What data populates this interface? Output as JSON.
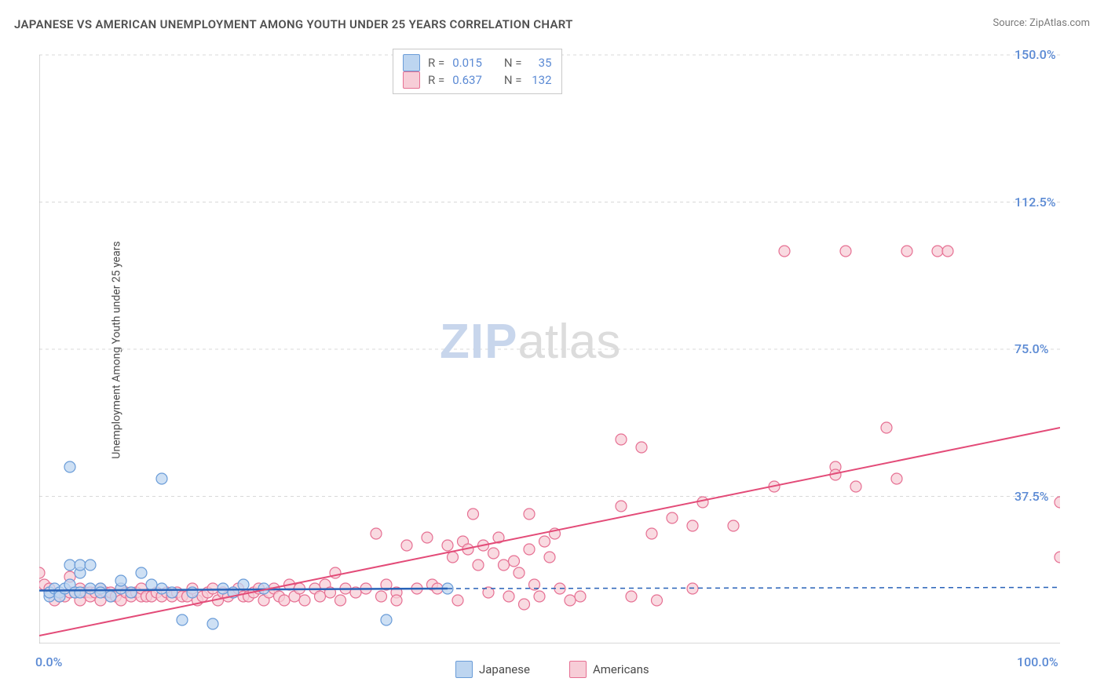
{
  "title": "JAPANESE VS AMERICAN UNEMPLOYMENT AMONG YOUTH UNDER 25 YEARS CORRELATION CHART",
  "source": "Source: ZipAtlas.com",
  "y_axis_label": "Unemployment Among Youth under 25 years",
  "watermark_zip": "ZIP",
  "watermark_atlas": "atlas",
  "chart": {
    "type": "scatter",
    "xlim": [
      0,
      100
    ],
    "ylim": [
      0,
      150
    ],
    "x_ticks_minor_step": 5,
    "x_ticks": [
      0,
      100
    ],
    "x_tick_labels": [
      "0.0%",
      "100.0%"
    ],
    "y_ticks": [
      37.5,
      75.0,
      112.5,
      150.0
    ],
    "y_tick_labels": [
      "37.5%",
      "75.0%",
      "112.5%",
      "150.0%"
    ],
    "grid_color": "#d9d9d9",
    "axis_color": "#b0b0b0",
    "background_color": "#ffffff"
  },
  "legend_top": {
    "series": [
      {
        "swatch_fill": "#bdd5f0",
        "swatch_stroke": "#6a9cd8",
        "r_label": "R =",
        "r_value": "0.015",
        "n_label": "N =",
        "n_value": "35"
      },
      {
        "swatch_fill": "#f7cdd7",
        "swatch_stroke": "#e67093",
        "r_label": "R =",
        "r_value": "0.637",
        "n_label": "N =",
        "n_value": "132"
      }
    ]
  },
  "legend_bottom": {
    "series": [
      {
        "swatch_fill": "#bdd5f0",
        "swatch_stroke": "#6a9cd8",
        "label": "Japanese"
      },
      {
        "swatch_fill": "#f7cdd7",
        "swatch_stroke": "#e67093",
        "label": "Americans"
      }
    ]
  },
  "trend_lines": {
    "blue": {
      "color": "#2862b8",
      "width": 2.5,
      "x1": 0,
      "y1": 13.5,
      "x2": 40,
      "y2": 14.0,
      "dash_x2": 100,
      "dash_y2": 14.3
    },
    "pink": {
      "color": "#e34b78",
      "width": 2,
      "x1": 0,
      "y1": 2,
      "x2": 100,
      "y2": 55
    }
  },
  "points": {
    "blue": {
      "fill": "#bdd5f0",
      "stroke": "#6a9cd8",
      "opacity": 0.75,
      "radius": 7,
      "data": [
        [
          1,
          12
        ],
        [
          1,
          13
        ],
        [
          1.5,
          14
        ],
        [
          2,
          13
        ],
        [
          2,
          12
        ],
        [
          2.5,
          14
        ],
        [
          3,
          15
        ],
        [
          3,
          45
        ],
        [
          3,
          20
        ],
        [
          3.5,
          13
        ],
        [
          4,
          18
        ],
        [
          4,
          20
        ],
        [
          4,
          13
        ],
        [
          5,
          14
        ],
        [
          5,
          20
        ],
        [
          6,
          14
        ],
        [
          6,
          13
        ],
        [
          7,
          12
        ],
        [
          8,
          14
        ],
        [
          8,
          16
        ],
        [
          9,
          13
        ],
        [
          10,
          18
        ],
        [
          11,
          15
        ],
        [
          12,
          14
        ],
        [
          12,
          42
        ],
        [
          13,
          13
        ],
        [
          14,
          6
        ],
        [
          15,
          13
        ],
        [
          17,
          5
        ],
        [
          18,
          14
        ],
        [
          19,
          13
        ],
        [
          20,
          15
        ],
        [
          22,
          14
        ],
        [
          34,
          6
        ],
        [
          40,
          14
        ]
      ]
    },
    "pink": {
      "fill": "#f7cdd7",
      "stroke": "#e67093",
      "opacity": 0.75,
      "radius": 7,
      "data": [
        [
          0,
          18
        ],
        [
          0.5,
          15
        ],
        [
          1,
          14
        ],
        [
          1,
          13
        ],
        [
          1.5,
          11
        ],
        [
          2,
          13
        ],
        [
          2,
          12
        ],
        [
          2.5,
          12
        ],
        [
          3,
          13
        ],
        [
          3,
          17
        ],
        [
          3.5,
          13
        ],
        [
          4,
          11
        ],
        [
          4,
          14
        ],
        [
          4.5,
          13
        ],
        [
          5,
          13
        ],
        [
          5,
          12
        ],
        [
          5.5,
          13
        ],
        [
          6,
          14
        ],
        [
          6,
          11
        ],
        [
          6.5,
          13
        ],
        [
          7,
          12
        ],
        [
          7,
          13
        ],
        [
          7.5,
          12
        ],
        [
          8,
          14
        ],
        [
          8,
          11
        ],
        [
          8.5,
          13
        ],
        [
          9,
          13
        ],
        [
          9,
          12
        ],
        [
          9.5,
          13
        ],
        [
          10,
          12
        ],
        [
          10,
          14
        ],
        [
          10.5,
          12
        ],
        [
          11,
          12
        ],
        [
          11.5,
          13
        ],
        [
          12,
          12
        ],
        [
          12.5,
          13
        ],
        [
          13,
          12
        ],
        [
          13.5,
          13
        ],
        [
          14,
          12
        ],
        [
          14.5,
          12
        ],
        [
          15,
          14
        ],
        [
          15.5,
          11
        ],
        [
          16,
          12
        ],
        [
          16.5,
          13
        ],
        [
          17,
          14
        ],
        [
          17.5,
          11
        ],
        [
          18,
          13
        ],
        [
          18.5,
          12
        ],
        [
          19,
          13
        ],
        [
          19.5,
          14
        ],
        [
          20,
          12
        ],
        [
          20.5,
          12
        ],
        [
          21,
          13
        ],
        [
          21.5,
          14
        ],
        [
          22,
          11
        ],
        [
          22.5,
          13
        ],
        [
          23,
          14
        ],
        [
          23.5,
          12
        ],
        [
          24,
          11
        ],
        [
          24.5,
          15
        ],
        [
          25,
          12
        ],
        [
          25.5,
          14
        ],
        [
          26,
          11
        ],
        [
          27,
          14
        ],
        [
          27.5,
          12
        ],
        [
          28,
          15
        ],
        [
          28.5,
          13
        ],
        [
          29,
          18
        ],
        [
          29.5,
          11
        ],
        [
          30,
          14
        ],
        [
          31,
          13
        ],
        [
          32,
          14
        ],
        [
          33,
          28
        ],
        [
          33.5,
          12
        ],
        [
          34,
          15
        ],
        [
          35,
          13
        ],
        [
          35,
          11
        ],
        [
          36,
          25
        ],
        [
          37,
          14
        ],
        [
          38,
          27
        ],
        [
          38.5,
          15
        ],
        [
          39,
          14
        ],
        [
          40,
          25
        ],
        [
          40.5,
          22
        ],
        [
          41,
          11
        ],
        [
          41.5,
          26
        ],
        [
          42,
          24
        ],
        [
          42.5,
          33
        ],
        [
          43,
          20
        ],
        [
          43.5,
          25
        ],
        [
          44,
          13
        ],
        [
          44.5,
          23
        ],
        [
          45,
          27
        ],
        [
          45.5,
          20
        ],
        [
          46,
          12
        ],
        [
          46.5,
          21
        ],
        [
          47,
          18
        ],
        [
          47.5,
          10
        ],
        [
          48,
          24
        ],
        [
          48,
          33
        ],
        [
          48.5,
          15
        ],
        [
          49,
          12
        ],
        [
          49.5,
          26
        ],
        [
          50,
          22
        ],
        [
          50.5,
          28
        ],
        [
          51,
          14
        ],
        [
          52,
          11
        ],
        [
          53,
          12
        ],
        [
          57,
          52
        ],
        [
          57,
          35
        ],
        [
          58,
          12
        ],
        [
          59,
          50
        ],
        [
          60,
          28
        ],
        [
          60.5,
          11
        ],
        [
          62,
          32
        ],
        [
          64,
          14
        ],
        [
          64,
          30
        ],
        [
          65,
          36
        ],
        [
          68,
          30
        ],
        [
          72,
          40
        ],
        [
          73,
          100
        ],
        [
          78,
          45
        ],
        [
          78,
          43
        ],
        [
          79,
          100
        ],
        [
          80,
          40
        ],
        [
          83,
          55
        ],
        [
          84,
          42
        ],
        [
          85,
          100
        ],
        [
          88,
          100
        ],
        [
          89,
          100
        ],
        [
          100,
          36
        ],
        [
          100,
          22
        ]
      ]
    }
  }
}
